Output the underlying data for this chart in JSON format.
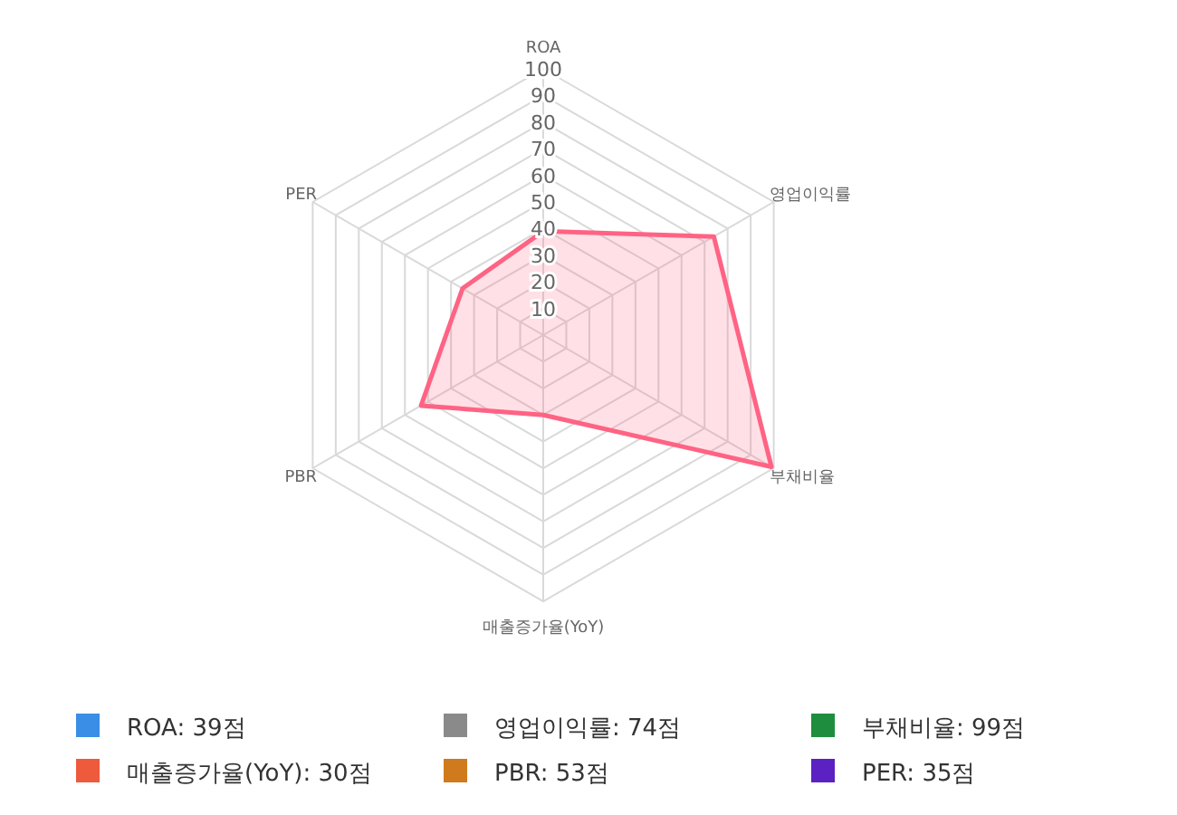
{
  "chart_data": {
    "type": "radar",
    "categories": [
      "ROA",
      "영업이익률",
      "부채비율",
      "매출증가율(YoY)",
      "PBR",
      "PER"
    ],
    "series": [
      {
        "color": "#ff6384",
        "values": [
          39,
          74,
          99,
          30,
          53,
          35
        ]
      }
    ],
    "ylim": [
      0,
      100
    ],
    "yticks": [
      10,
      20,
      30,
      40,
      50,
      60,
      70,
      80,
      90,
      100
    ],
    "grid": true,
    "colors": [
      "#3a8ee6",
      "#8a8a8a",
      "#1e8e3e",
      "#ee5a3c",
      "#cf7a1c",
      "#5b21c2"
    ],
    "annotations": [
      "ROA: 39점",
      "영업이익률: 74점",
      "부채비율: 99점",
      "매출증가율(YoY): 30점",
      "PBR: 53점",
      "PER: 35점"
    ]
  }
}
